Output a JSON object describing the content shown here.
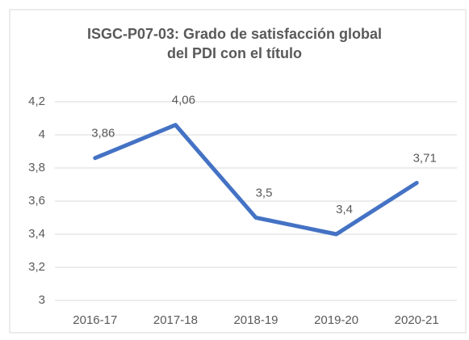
{
  "chart_data": {
    "type": "line",
    "title": "ISGC-P07-03: Grado de satisfacción global del PDI con el título",
    "categories": [
      "2016-17",
      "2017-18",
      "2018-19",
      "2019-20",
      "2020-21"
    ],
    "values": [
      3.86,
      4.06,
      3.5,
      3.4,
      3.71
    ],
    "value_labels": [
      "3,86",
      "4,06",
      "3,5",
      "3,4",
      "3,71"
    ],
    "color": "#4472c4",
    "ylim": [
      3,
      4.2
    ],
    "yticks": [
      3,
      {
        "value": 3.2,
        "label": "3,2"
      },
      {
        "value": 3.4,
        "label": "3,4"
      },
      {
        "value": 3.6,
        "label": "3,6"
      },
      {
        "value": 3.8,
        "label": "3,8"
      },
      4,
      {
        "value": 4.2,
        "label": "4,2"
      }
    ],
    "grid": true
  }
}
